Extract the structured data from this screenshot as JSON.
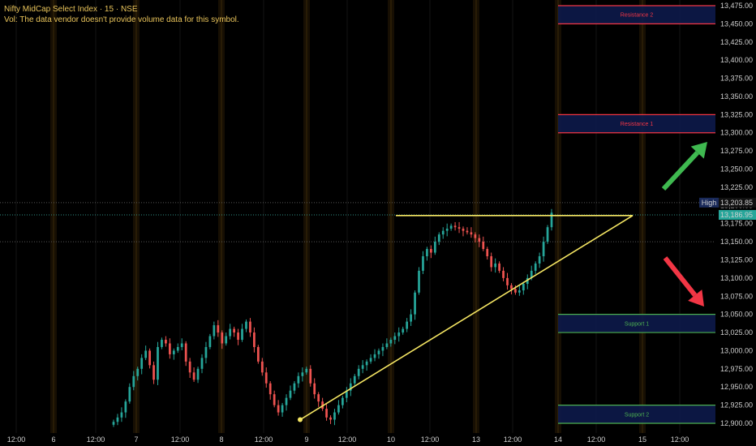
{
  "legend": {
    "symbol_line": "Nifty MidCap Select Index · 15 · NSE",
    "vol_line": "Vol: The data vendor doesn't provide volume data for this symbol."
  },
  "colors": {
    "background": "#000000",
    "up": "#26a69a",
    "down": "#ef5350",
    "trendline": "#f5e663",
    "resistance": "#f23645",
    "support": "#4caf50",
    "zone_fill": "#0d1a4a",
    "arrow_up": "#3fb950",
    "arrow_down": "#f23645"
  },
  "price_axis": {
    "ticks": [
      "13,475.00",
      "13,450.00",
      "13,425.00",
      "13,400.00",
      "13,375.00",
      "13,350.00",
      "13,325.00",
      "13,300.00",
      "13,275.00",
      "13,250.00",
      "13,225.00",
      "13,200.00",
      "13,175.00",
      "13,150.00",
      "13,125.00",
      "13,100.00",
      "13,075.00",
      "13,050.00",
      "13,025.00",
      "13,000.00",
      "12,975.00",
      "12,950.00",
      "12,925.00",
      "12,900.00"
    ],
    "high_label": "High",
    "high_value": "13,203.85",
    "last_value": "13,186.95"
  },
  "time_axis": {
    "labels": [
      "12:00",
      "6",
      "12:00",
      "7",
      "12:00",
      "8",
      "12:00",
      "9",
      "12:00",
      "10",
      "12:00",
      "13",
      "12:00",
      "14",
      "12:00",
      "15",
      "12:00"
    ]
  },
  "chart_data": {
    "type": "candlestick",
    "ylim": [
      12895,
      13480
    ],
    "high": 13203.85,
    "last": 13186.95,
    "zones": [
      {
        "name": "Resistance 2",
        "low": 13450,
        "high": 13475
      },
      {
        "name": "Resistance 1",
        "low": 13300,
        "high": 13325
      },
      {
        "name": "Support 1",
        "low": 13025,
        "high": 13050
      },
      {
        "name": "Support 2",
        "low": 12900,
        "high": 12925
      }
    ],
    "close_series": [
      12902,
      12908,
      12915,
      12930,
      12950,
      12965,
      12975,
      12990,
      13000,
      12980,
      12960,
      13005,
      13015,
      13010,
      12995,
      13000,
      13005,
      13010,
      12985,
      12970,
      12960,
      12975,
      12990,
      13005,
      13020,
      13035,
      13025,
      13010,
      13020,
      13030,
      13025,
      13015,
      13030,
      13040,
      13025,
      13005,
      12985,
      12970,
      12955,
      12940,
      12925,
      12915,
      12925,
      12935,
      12945,
      12955,
      12965,
      12970,
      12975,
      12955,
      12940,
      12930,
      12920,
      12908,
      12905,
      12915,
      12925,
      12935,
      12945,
      12955,
      12965,
      12975,
      12980,
      12985,
      12990,
      12995,
      13000,
      13005,
      13010,
      13015,
      13020,
      13025,
      13030,
      13040,
      13050,
      13080,
      13110,
      13130,
      13140,
      13135,
      13150,
      13160,
      13165,
      13168,
      13172,
      13170,
      13168,
      13165,
      13163,
      13160,
      13155,
      13150,
      13140,
      13130,
      13115,
      13120,
      13110,
      13100,
      13090,
      13085,
      13080,
      13083,
      13092,
      13100,
      13110,
      13120,
      13130,
      13150,
      13170,
      13190
    ]
  }
}
